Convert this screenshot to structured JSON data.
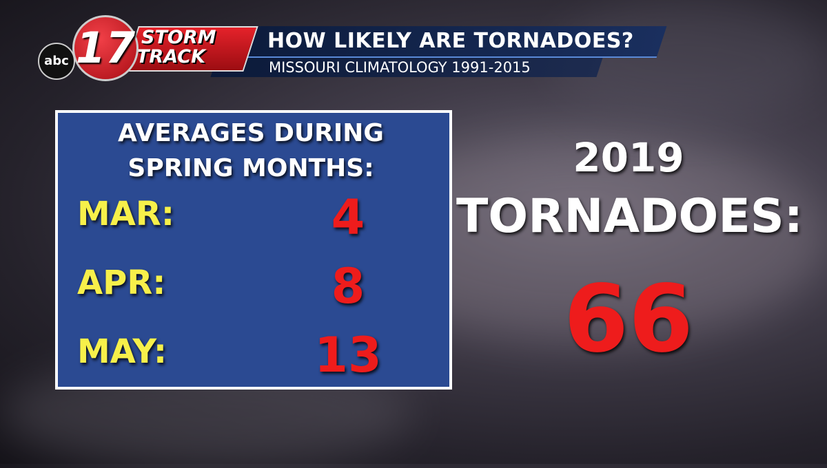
{
  "header": {
    "logo": {
      "network": "abc",
      "channel": "17",
      "brand": [
        "STORM",
        "TRACK"
      ]
    },
    "title": "HOW LIKELY ARE TORNADOES?",
    "subtitle": "MISSOURI CLIMATOLOGY 1991-2015"
  },
  "averages": {
    "heading": [
      "AVERAGES DURING",
      "SPRING MONTHS:"
    ],
    "rows": [
      {
        "month": "MAR:",
        "value": 4
      },
      {
        "month": "APR:",
        "value": 8
      },
      {
        "month": "MAY:",
        "value": 13
      }
    ]
  },
  "highlight": {
    "heading": [
      "2019",
      "TORNADOES:"
    ],
    "value": 66
  }
}
